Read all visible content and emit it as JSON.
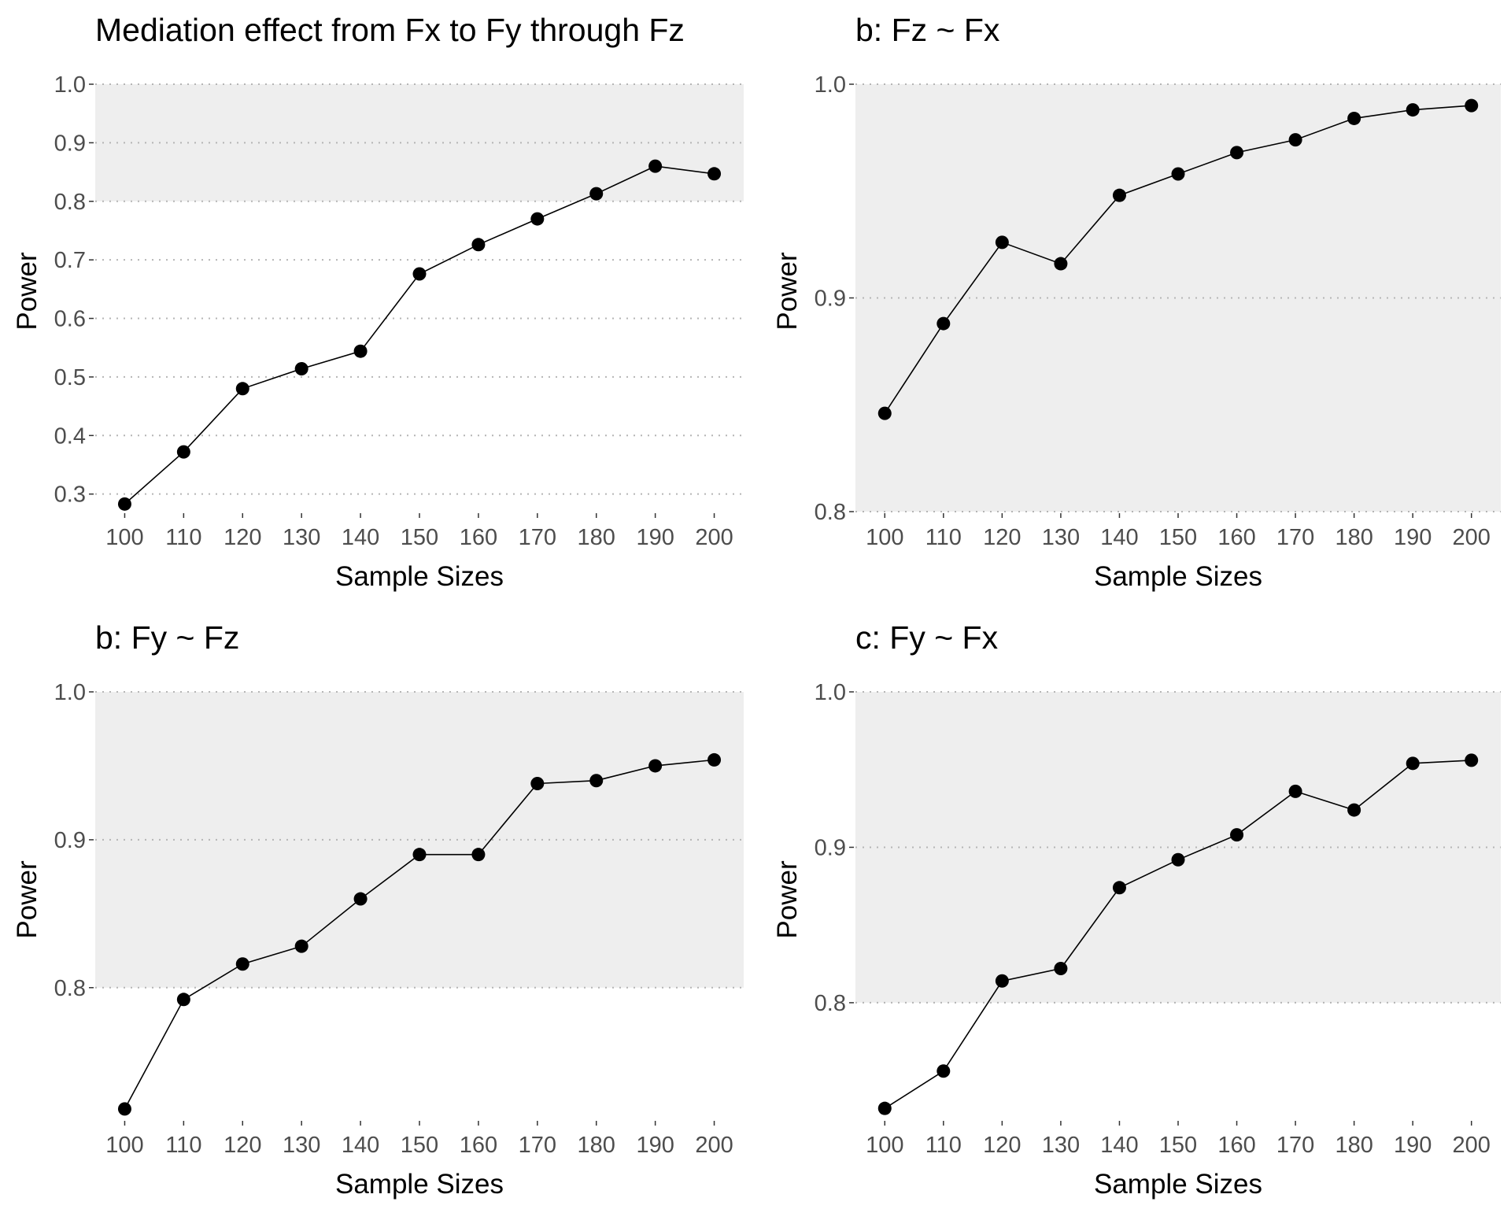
{
  "chart_data": [
    {
      "type": "line",
      "title": "Mediation effect from Fx to Fy through Fz",
      "xlabel": "Sample Sizes",
      "ylabel": "Power",
      "x": [
        100,
        110,
        120,
        130,
        140,
        150,
        160,
        170,
        180,
        190,
        200
      ],
      "y": [
        0.283,
        0.372,
        0.48,
        0.514,
        0.544,
        0.676,
        0.726,
        0.77,
        0.813,
        0.86,
        0.847
      ],
      "xticks": [
        "100",
        "110",
        "120",
        "130",
        "140",
        "150",
        "160",
        "170",
        "180",
        "190",
        "200"
      ],
      "yticks": [
        0.3,
        0.4,
        0.5,
        0.6,
        0.7,
        0.8,
        0.9,
        1.0
      ],
      "ytick_labels": [
        "0.3",
        "0.4",
        "0.5",
        "0.6",
        "0.7",
        "0.8",
        "0.9",
        "1.0"
      ],
      "xlim": [
        95,
        205
      ],
      "ylim": [
        0.27,
        1.0
      ],
      "shade_range": [
        0.8,
        1.0
      ],
      "grid": "horizontal-dotted",
      "point_color": "#000000",
      "shade_color": "#eeeeee"
    },
    {
      "type": "line",
      "title": "b: Fz ~ Fx",
      "xlabel": "Sample Sizes",
      "ylabel": "Power",
      "x": [
        100,
        110,
        120,
        130,
        140,
        150,
        160,
        170,
        180,
        190,
        200
      ],
      "y": [
        0.846,
        0.888,
        0.926,
        0.916,
        0.948,
        0.958,
        0.968,
        0.974,
        0.984,
        0.988,
        0.99
      ],
      "xticks": [
        "100",
        "110",
        "120",
        "130",
        "140",
        "150",
        "160",
        "170",
        "180",
        "190",
        "200"
      ],
      "yticks": [
        0.8,
        0.9,
        1.0
      ],
      "ytick_labels": [
        "0.8",
        "0.9",
        "1.0"
      ],
      "xlim": [
        95,
        205
      ],
      "ylim": [
        0.8,
        1.0
      ],
      "shade_range": [
        0.8,
        1.0
      ],
      "grid": "horizontal-dotted",
      "point_color": "#000000",
      "shade_color": "#eeeeee"
    },
    {
      "type": "line",
      "title": "b: Fy ~ Fz",
      "xlabel": "Sample Sizes",
      "ylabel": "Power",
      "x": [
        100,
        110,
        120,
        130,
        140,
        150,
        160,
        170,
        180,
        190,
        200
      ],
      "y": [
        0.718,
        0.792,
        0.816,
        0.828,
        0.86,
        0.89,
        0.89,
        0.938,
        0.94,
        0.95,
        0.954
      ],
      "xticks": [
        "100",
        "110",
        "120",
        "130",
        "140",
        "150",
        "160",
        "170",
        "180",
        "190",
        "200"
      ],
      "yticks": [
        0.8,
        0.9,
        1.0
      ],
      "ytick_labels": [
        "0.8",
        "0.9",
        "1.0"
      ],
      "xlim": [
        95,
        205
      ],
      "ylim": [
        0.711,
        1.0
      ],
      "shade_range": [
        0.8,
        1.0
      ],
      "grid": "horizontal-dotted",
      "point_color": "#000000",
      "shade_color": "#eeeeee"
    },
    {
      "type": "line",
      "title": "c: Fy ~ Fx",
      "xlabel": "Sample Sizes",
      "ylabel": "Power",
      "x": [
        100,
        110,
        120,
        130,
        140,
        150,
        160,
        170,
        180,
        190,
        200
      ],
      "y": [
        0.732,
        0.756,
        0.814,
        0.822,
        0.874,
        0.892,
        0.908,
        0.936,
        0.924,
        0.954,
        0.956
      ],
      "xticks": [
        "100",
        "110",
        "120",
        "130",
        "140",
        "150",
        "160",
        "170",
        "180",
        "190",
        "200"
      ],
      "yticks": [
        0.8,
        0.9,
        1.0
      ],
      "ytick_labels": [
        "0.8",
        "0.9",
        "1.0"
      ],
      "xlim": [
        95,
        205
      ],
      "ylim": [
        0.725,
        1.0
      ],
      "shade_range": [
        0.8,
        1.0
      ],
      "grid": "horizontal-dotted",
      "point_color": "#000000",
      "shade_color": "#eeeeee"
    }
  ]
}
